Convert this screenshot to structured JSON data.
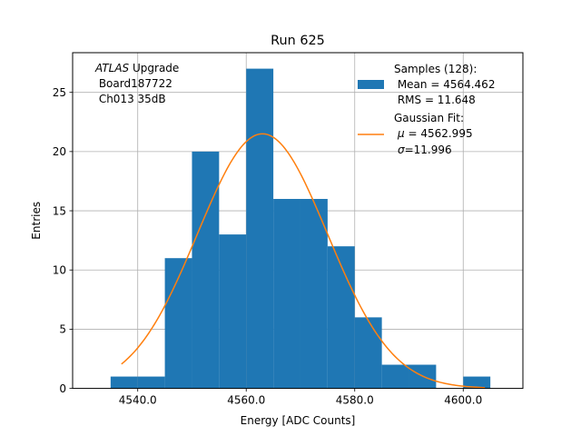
{
  "chart_data": {
    "type": "bar",
    "title": "Run 625",
    "xlabel": "Energy [ADC Counts]",
    "ylabel": "Entries",
    "xlim": [
      4528,
      4611
    ],
    "ylim": [
      0,
      28.35
    ],
    "grid": true,
    "x_ticks": [
      4540.0,
      4560.0,
      4580.0,
      4600.0
    ],
    "x_tick_labels": [
      "4540.0",
      "4560.0",
      "4580.0",
      "4600.0"
    ],
    "y_ticks": [
      0,
      5,
      10,
      15,
      20,
      25
    ],
    "y_tick_labels": [
      "0",
      "5",
      "10",
      "15",
      "20",
      "25"
    ],
    "histogram": {
      "name": "Samples (128):",
      "color": "#1f77b4",
      "bins": [
        {
          "x0": 4535,
          "x1": 4540,
          "count": 1
        },
        {
          "x0": 4540,
          "x1": 4545,
          "count": 1
        },
        {
          "x0": 4545,
          "x1": 4550,
          "count": 11
        },
        {
          "x0": 4550,
          "x1": 4555,
          "count": 20
        },
        {
          "x0": 4555,
          "x1": 4560,
          "count": 13
        },
        {
          "x0": 4560,
          "x1": 4565,
          "count": 27
        },
        {
          "x0": 4565,
          "x1": 4570,
          "count": 16
        },
        {
          "x0": 4570,
          "x1": 4575,
          "count": 16
        },
        {
          "x0": 4575,
          "x1": 4580,
          "count": 12
        },
        {
          "x0": 4580,
          "x1": 4585,
          "count": 6
        },
        {
          "x0": 4585,
          "x1": 4590,
          "count": 2
        },
        {
          "x0": 4590,
          "x1": 4595,
          "count": 2
        },
        {
          "x0": 4600,
          "x1": 4605,
          "count": 1
        }
      ]
    },
    "fit": {
      "name": "Gaussian Fit:",
      "color": "#ff7f0e",
      "mu": 4562.995,
      "sigma": 11.996,
      "amplitude": 21.5,
      "x_range": [
        4537,
        4604
      ]
    },
    "annotation": {
      "line1_italic": "ATLAS",
      "line1_rest": " Upgrade",
      "line2": " Board187722",
      "line3": " Ch013 35dB"
    },
    "legend": {
      "placement": "top-right",
      "samples_title": "Samples (128):",
      "samples_mean": " Mean = 4564.462",
      "samples_rms": " RMS = 11.648",
      "fit_title": "Gaussian Fit:",
      "fit_mu_symbol": "μ",
      "fit_mu_rest": " = 4562.995",
      "fit_sigma_symbol": "σ",
      "fit_sigma_rest": "=11.996"
    }
  }
}
